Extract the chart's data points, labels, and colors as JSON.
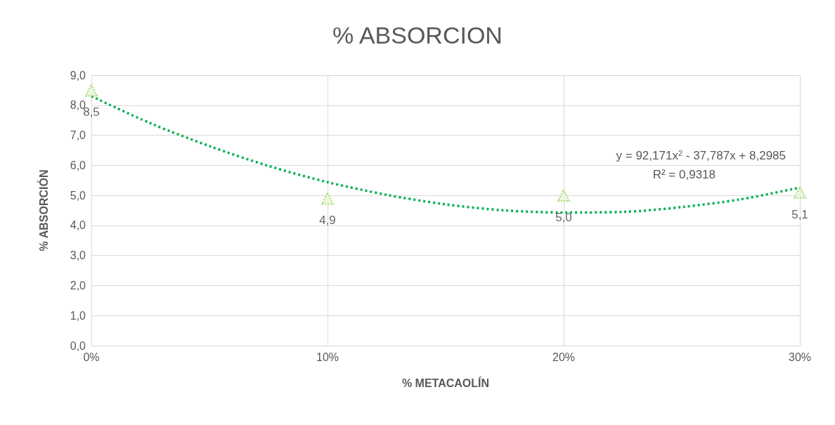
{
  "chart_data": {
    "type": "scatter",
    "title": "% ABSORCION",
    "xlabel": "% METACAOLÍN",
    "ylabel": "% ABSORCIÓN",
    "xlim": [
      0,
      0.3
    ],
    "xticks": [
      {
        "value": 0,
        "label": "0%"
      },
      {
        "value": 0.1,
        "label": "10%"
      },
      {
        "value": 0.2,
        "label": "20%"
      },
      {
        "value": 0.3,
        "label": "30%"
      }
    ],
    "ylim": [
      0,
      9
    ],
    "yticks": [
      {
        "value": 0,
        "label": "0,0"
      },
      {
        "value": 1,
        "label": "1,0"
      },
      {
        "value": 2,
        "label": "2,0"
      },
      {
        "value": 3,
        "label": "3,0"
      },
      {
        "value": 4,
        "label": "4,0"
      },
      {
        "value": 5,
        "label": "5,0"
      },
      {
        "value": 6,
        "label": "6,0"
      },
      {
        "value": 7,
        "label": "7,0"
      },
      {
        "value": 8,
        "label": "8,0"
      },
      {
        "value": 9,
        "label": "9,0"
      }
    ],
    "grid": true,
    "series": [
      {
        "color": "#92d050",
        "marker": "triangle",
        "x": [
          0,
          0.1,
          0.2,
          0.3
        ],
        "values": [
          8.5,
          4.9,
          5.0,
          5.1
        ],
        "value_labels": [
          "8,5",
          "4,9",
          "5,0",
          "5,1"
        ]
      },
      {
        "type": "line",
        "color": "#00b050",
        "marker": "none",
        "line_style": "dotted",
        "x": [
          0,
          0.025,
          0.05,
          0.075,
          0.1,
          0.125,
          0.15,
          0.175,
          0.2,
          0.225,
          0.25,
          0.275,
          0.3
        ],
        "values": [
          8.3,
          7.4,
          6.64,
          5.98,
          5.44,
          5.02,
          4.7,
          4.5,
          4.43,
          4.45,
          4.61,
          4.87,
          5.26
        ]
      }
    ],
    "annotations": [
      "y = 92,171x$^{2}$ - 37,787x + 8,2985",
      "R² = 0,9318"
    ]
  }
}
